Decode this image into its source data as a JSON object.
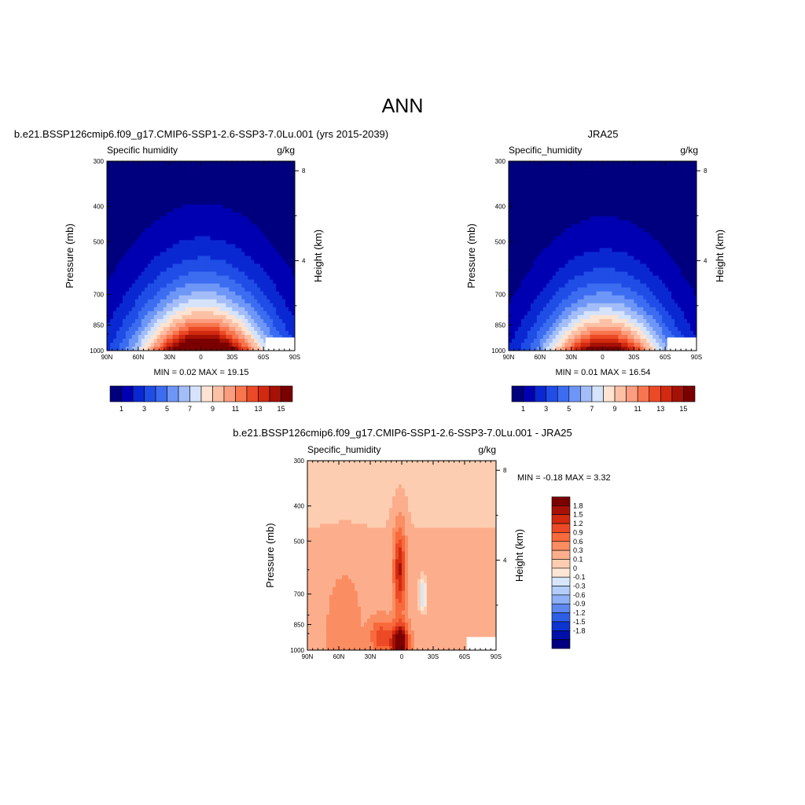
{
  "title": "ANN",
  "colors": {
    "model_scale": [
      "#00007f",
      "#0000b3",
      "#0a28d2",
      "#1f4de6",
      "#3c6cf0",
      "#6d96f7",
      "#a3bdf8",
      "#d5e3fb",
      "#fde3d2",
      "#fcc1a5",
      "#fc9d7f",
      "#f8764f",
      "#ec4a26",
      "#d12a10",
      "#a51106",
      "#7a0000"
    ],
    "diff_scale": [
      "#7a0000",
      "#a51106",
      "#d12a10",
      "#ec4a26",
      "#f86a3c",
      "#fb8d62",
      "#fcae8c",
      "#fdcdb1",
      "#fde6d4",
      "#d7e6fb",
      "#b3cdf9",
      "#8eb0f6",
      "#5d88f0",
      "#2d5ee5",
      "#0c34cf",
      "#0010ab",
      "#000080"
    ]
  },
  "chart_data": [
    {
      "type": "heatmap",
      "id": "model",
      "title": "b.e21.BSSP126cmip6.f09_g17.CMIP6-SSP1-2.6-SSP3-7.0Lu.001 (yrs 2015-2039)",
      "left_label": "Specific humidity",
      "right_label": "g/kg",
      "ylabel": "Pressure (mb)",
      "ylabel_right": "Height (km)",
      "x_ticks": [
        "90N",
        "60N",
        "30N",
        "0",
        "30S",
        "60S",
        "90S"
      ],
      "x_range": [
        90,
        -90
      ],
      "y_ticks": [
        "300",
        "400",
        "500",
        "700",
        "850",
        "1000"
      ],
      "y_tick_values": [
        300,
        400,
        500,
        700,
        850,
        1000
      ],
      "y_range": [
        300,
        1000
      ],
      "height_ticks": [
        "8",
        "4"
      ],
      "height_tick_values_km": [
        8,
        4
      ],
      "stats": "MIN =   0.02  MAX =  19.15",
      "min": 0.02,
      "max": 19.15,
      "levels": [
        1,
        2,
        3,
        4,
        5,
        6,
        7,
        8,
        9,
        10,
        11,
        12,
        13,
        14,
        15
      ],
      "colorbar_labels": [
        "1",
        "3",
        "5",
        "7",
        "9",
        "11",
        "13",
        "15"
      ],
      "field": {
        "peak_lat": -2,
        "surface_q": 18.5,
        "polar_q": 1.2,
        "lat_width": 42,
        "scale_height_km": 2.2
      }
    },
    {
      "type": "heatmap",
      "id": "obs",
      "title": "JRA25",
      "left_label": "Specific_humidity",
      "right_label": "g/kg",
      "ylabel": "Pressure (mb)",
      "ylabel_right": "Height (km)",
      "x_ticks": [
        "90N",
        "60N",
        "30N",
        "0",
        "30S",
        "60S",
        "90S"
      ],
      "x_range": [
        90,
        -90
      ],
      "y_ticks": [
        "300",
        "400",
        "500",
        "700",
        "850",
        "1000"
      ],
      "y_tick_values": [
        300,
        400,
        500,
        700,
        850,
        1000
      ],
      "y_range": [
        300,
        1000
      ],
      "height_ticks": [
        "8",
        "4"
      ],
      "height_tick_values_km": [
        8,
        4
      ],
      "stats": "MIN =   0.01  MAX =  16.54",
      "min": 0.01,
      "max": 16.54,
      "levels": [
        1,
        2,
        3,
        4,
        5,
        6,
        7,
        8,
        9,
        10,
        11,
        12,
        13,
        14,
        15
      ],
      "colorbar_labels": [
        "1",
        "3",
        "5",
        "7",
        "9",
        "11",
        "13",
        "15"
      ],
      "field": {
        "peak_lat": -2,
        "surface_q": 16.0,
        "polar_q": 1.0,
        "lat_width": 40,
        "scale_height_km": 2.1
      }
    },
    {
      "type": "heatmap",
      "id": "diff",
      "title": "b.e21.BSSP126cmip6.f09_g17.CMIP6-SSP1-2.6-SSP3-7.0Lu.001 - JRA25",
      "left_label": "Specific_humidity",
      "right_label": "g/kg",
      "ylabel": "Pressure (mb)",
      "ylabel_right": "Height (km)",
      "x_ticks": [
        "90N",
        "60N",
        "30N",
        "0",
        "30S",
        "60S",
        "90S"
      ],
      "x_range": [
        90,
        -90
      ],
      "y_ticks": [
        "300",
        "400",
        "500",
        "700",
        "850",
        "1000"
      ],
      "y_tick_values": [
        300,
        400,
        500,
        700,
        850,
        1000
      ],
      "y_range": [
        300,
        1000
      ],
      "height_ticks": [
        "8",
        "4"
      ],
      "height_tick_values_km": [
        8,
        4
      ],
      "stats": "MIN = -0.18  MAX =   3.32",
      "min": -0.18,
      "max": 3.32,
      "levels": [
        1.8,
        1.5,
        1.2,
        0.9,
        0.6,
        0.3,
        0.1,
        0,
        -0.1,
        -0.3,
        -0.6,
        -0.9,
        -1.2,
        -1.5,
        -1.8
      ],
      "colorbar_labels": [
        "1.8",
        "1.5",
        "1.2",
        "0.9",
        "0.6",
        "0.3",
        "0.1",
        "0",
        "-0.1",
        "-0.3",
        "-0.6",
        "-0.9",
        "-1.2",
        "-1.5",
        "-1.8"
      ]
    }
  ]
}
